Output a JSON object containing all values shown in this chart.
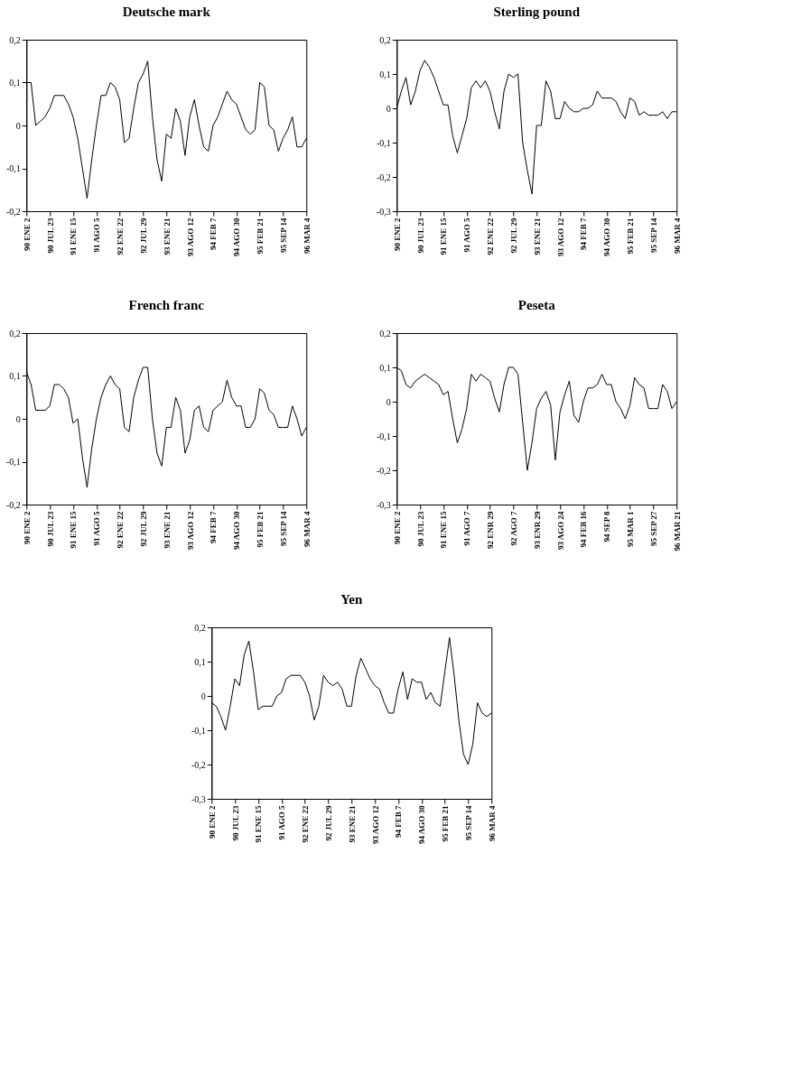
{
  "chart_data": [
    {
      "type": "line",
      "title": "Deutsche mark",
      "color": "#000000",
      "categories": [
        "90 ENE 2",
        null,
        null,
        null,
        null,
        "90 JUL 23",
        null,
        null,
        null,
        null,
        "91 ENE 15",
        null,
        null,
        null,
        null,
        "91 AGO 5",
        null,
        null,
        null,
        null,
        "92 ENE 22",
        null,
        null,
        null,
        null,
        "92 JUL 29",
        null,
        null,
        null,
        null,
        "93 ENE 21",
        null,
        null,
        null,
        null,
        "93 AGO 12",
        null,
        null,
        null,
        null,
        "94 FEB 7",
        null,
        null,
        null,
        null,
        "94 AGO 30",
        null,
        null,
        null,
        null,
        "95 FEB 21",
        null,
        null,
        null,
        null,
        "95 SEP 14",
        null,
        null,
        null,
        null,
        "96 MAR 4"
      ],
      "values": [
        0.1,
        0.1,
        0.0,
        0.01,
        0.02,
        0.04,
        0.07,
        0.07,
        0.07,
        0.05,
        0.02,
        -0.03,
        -0.1,
        -0.17,
        -0.08,
        0.0,
        0.07,
        0.07,
        0.1,
        0.09,
        0.06,
        -0.04,
        -0.03,
        0.04,
        0.1,
        0.12,
        0.15,
        0.02,
        -0.08,
        -0.13,
        -0.02,
        -0.03,
        0.04,
        0.01,
        -0.07,
        0.02,
        0.06,
        0.0,
        -0.05,
        -0.06,
        0.0,
        0.02,
        0.05,
        0.08,
        0.06,
        0.05,
        0.02,
        -0.01,
        -0.02,
        -0.01,
        0.1,
        0.09,
        0.0,
        -0.01,
        -0.06,
        -0.03,
        -0.01,
        0.02,
        -0.05,
        -0.05,
        -0.03
      ],
      "ylim": [
        -0.2,
        0.2
      ],
      "yticks": [
        {
          "value": -0.2,
          "label": "-0,2"
        },
        {
          "value": -0.1,
          "label": "-0,1"
        },
        0,
        {
          "value": 0.1,
          "label": "0,1"
        },
        {
          "value": 0.2,
          "label": "0,2"
        }
      ]
    },
    {
      "type": "line",
      "title": "Sterling pound",
      "color": "#000000",
      "categories": [
        "90 ENE 2",
        null,
        null,
        null,
        null,
        "90 JUL 23",
        null,
        null,
        null,
        null,
        "91 ENE 15",
        null,
        null,
        null,
        null,
        "91 AGO 5",
        null,
        null,
        null,
        null,
        "92 ENE 22",
        null,
        null,
        null,
        null,
        "92 JUL 29",
        null,
        null,
        null,
        null,
        "93 ENE 21",
        null,
        null,
        null,
        null,
        "93 AGO 12",
        null,
        null,
        null,
        null,
        "94 FEB 7",
        null,
        null,
        null,
        null,
        "94 AGO 30",
        null,
        null,
        null,
        null,
        "95 FEB 21",
        null,
        null,
        null,
        null,
        "95 SEP 14",
        null,
        null,
        null,
        null,
        "96 MAR 4"
      ],
      "values": [
        0.0,
        0.05,
        0.09,
        0.01,
        0.05,
        0.11,
        0.14,
        0.12,
        0.09,
        0.05,
        0.01,
        0.01,
        -0.08,
        -0.13,
        -0.08,
        -0.03,
        0.06,
        0.08,
        0.06,
        0.08,
        0.05,
        -0.01,
        -0.06,
        0.05,
        0.1,
        0.09,
        0.1,
        -0.1,
        -0.18,
        -0.25,
        -0.05,
        -0.05,
        0.08,
        0.05,
        -0.03,
        -0.03,
        0.02,
        0.0,
        -0.01,
        -0.01,
        0.0,
        0.0,
        0.01,
        0.05,
        0.03,
        0.03,
        0.03,
        0.02,
        -0.01,
        -0.03,
        0.03,
        0.02,
        -0.02,
        -0.01,
        -0.02,
        -0.02,
        -0.02,
        -0.01,
        -0.03,
        -0.01,
        -0.01
      ],
      "ylim": [
        -0.3,
        0.2
      ],
      "yticks": [
        {
          "value": -0.3,
          "label": "-0,3"
        },
        {
          "value": -0.2,
          "label": "-0,2"
        },
        {
          "value": -0.1,
          "label": "-0,1"
        },
        0,
        {
          "value": 0.1,
          "label": "0,1"
        },
        {
          "value": 0.2,
          "label": "0,2"
        }
      ]
    },
    {
      "type": "line",
      "title": "French franc",
      "color": "#000000",
      "categories": [
        "90 ENE 2",
        null,
        null,
        null,
        null,
        "90 JUL 23",
        null,
        null,
        null,
        null,
        "91 ENE 15",
        null,
        null,
        null,
        null,
        "91 AGO 5",
        null,
        null,
        null,
        null,
        "92 ENE 22",
        null,
        null,
        null,
        null,
        "92 JUL 29",
        null,
        null,
        null,
        null,
        "93 ENE 21",
        null,
        null,
        null,
        null,
        "93 AGO 12",
        null,
        null,
        null,
        null,
        "94 FEB 7",
        null,
        null,
        null,
        null,
        "94 AGO 30",
        null,
        null,
        null,
        null,
        "95 FEB 21",
        null,
        null,
        null,
        null,
        "95 SEP 14",
        null,
        null,
        null,
        null,
        "96 MAR 4"
      ],
      "values": [
        0.11,
        0.08,
        0.02,
        0.02,
        0.02,
        0.03,
        0.08,
        0.08,
        0.07,
        0.05,
        -0.01,
        0.0,
        -0.09,
        -0.16,
        -0.07,
        0.0,
        0.05,
        0.08,
        0.1,
        0.08,
        0.07,
        -0.02,
        -0.03,
        0.05,
        0.09,
        0.12,
        0.12,
        0.0,
        -0.08,
        -0.11,
        -0.02,
        -0.02,
        0.05,
        0.02,
        -0.08,
        -0.05,
        0.02,
        0.03,
        -0.02,
        -0.03,
        0.02,
        0.03,
        0.04,
        0.09,
        0.05,
        0.03,
        0.03,
        -0.02,
        -0.02,
        0.0,
        0.07,
        0.06,
        0.02,
        0.01,
        -0.02,
        -0.02,
        -0.02,
        0.03,
        0.0,
        -0.04,
        -0.02
      ],
      "ylim": [
        -0.2,
        0.2
      ],
      "yticks": [
        {
          "value": -0.2,
          "label": "-0,2"
        },
        {
          "value": -0.1,
          "label": "-0,1"
        },
        0,
        {
          "value": 0.1,
          "label": "0,1"
        },
        {
          "value": 0.2,
          "label": "0,2"
        }
      ]
    },
    {
      "type": "line",
      "title": "Peseta",
      "color": "#000000",
      "categories": [
        "90 ENE 2",
        null,
        null,
        null,
        null,
        "90 JUL 23",
        null,
        null,
        null,
        null,
        "91 ENE 15",
        null,
        null,
        null,
        null,
        "91 AGO 7",
        null,
        null,
        null,
        null,
        "92 ENR 29",
        null,
        null,
        null,
        null,
        "92 AGO 7",
        null,
        null,
        null,
        null,
        "93 ENR 29",
        null,
        null,
        null,
        null,
        "93 AGO 24",
        null,
        null,
        null,
        null,
        "94 FEB 16",
        null,
        null,
        null,
        null,
        "94 SEP 8",
        null,
        null,
        null,
        null,
        "95 MAR 1",
        null,
        null,
        null,
        null,
        "95 SEP 27",
        null,
        null,
        null,
        null,
        "96 MAR 21"
      ],
      "values": [
        0.1,
        0.09,
        0.05,
        0.04,
        0.06,
        0.07,
        0.08,
        0.07,
        0.06,
        0.05,
        0.02,
        0.03,
        -0.05,
        -0.12,
        -0.08,
        -0.02,
        0.08,
        0.06,
        0.08,
        0.07,
        0.06,
        0.01,
        -0.03,
        0.05,
        0.1,
        0.1,
        0.08,
        -0.06,
        -0.2,
        -0.12,
        -0.02,
        0.01,
        0.03,
        -0.01,
        -0.17,
        -0.03,
        0.02,
        0.06,
        -0.04,
        -0.06,
        0.0,
        0.04,
        0.04,
        0.05,
        0.08,
        0.05,
        0.05,
        0.0,
        -0.02,
        -0.05,
        -0.01,
        0.07,
        0.05,
        0.04,
        -0.02,
        -0.02,
        -0.02,
        0.05,
        0.03,
        -0.02,
        0.0
      ],
      "ylim": [
        -0.3,
        0.2
      ],
      "yticks": [
        {
          "value": -0.3,
          "label": "-0,3"
        },
        {
          "value": -0.2,
          "label": "-0,2"
        },
        {
          "value": -0.1,
          "label": "-0,1"
        },
        0,
        {
          "value": 0.1,
          "label": "0,1"
        },
        {
          "value": 0.2,
          "label": "0,2"
        }
      ]
    },
    {
      "type": "line",
      "title": "Yen",
      "color": "#000000",
      "categories": [
        "90 ENE 2",
        null,
        null,
        null,
        null,
        "90 JUL 23",
        null,
        null,
        null,
        null,
        "91 ENE 15",
        null,
        null,
        null,
        null,
        "91 AGO 5",
        null,
        null,
        null,
        null,
        "92 ENE 22",
        null,
        null,
        null,
        null,
        "92 JUL 29",
        null,
        null,
        null,
        null,
        "93 ENE 21",
        null,
        null,
        null,
        null,
        "93 AGO 12",
        null,
        null,
        null,
        null,
        "94 FEB 7",
        null,
        null,
        null,
        null,
        "94 AGO 30",
        null,
        null,
        null,
        null,
        "95 FEB 21",
        null,
        null,
        null,
        null,
        "95 SEP 14",
        null,
        null,
        null,
        null,
        "96 MAR 4"
      ],
      "values": [
        -0.02,
        -0.03,
        -0.06,
        -0.1,
        -0.03,
        0.05,
        0.03,
        0.12,
        0.16,
        0.07,
        -0.04,
        -0.03,
        -0.03,
        -0.03,
        0.0,
        0.01,
        0.05,
        0.06,
        0.06,
        0.06,
        0.04,
        0.0,
        -0.07,
        -0.03,
        0.06,
        0.04,
        0.03,
        0.04,
        0.02,
        -0.03,
        -0.03,
        0.06,
        0.11,
        0.08,
        0.05,
        0.03,
        0.02,
        -0.02,
        -0.05,
        -0.05,
        0.02,
        0.07,
        -0.01,
        0.05,
        0.04,
        0.04,
        -0.01,
        0.01,
        -0.02,
        -0.03,
        0.07,
        0.17,
        0.06,
        -0.07,
        -0.17,
        -0.2,
        -0.14,
        -0.02,
        -0.05,
        -0.06,
        -0.05
      ],
      "ylim": [
        -0.3,
        0.2
      ],
      "yticks": [
        {
          "value": -0.3,
          "label": "-0,3"
        },
        {
          "value": -0.2,
          "label": "-0,2"
        },
        {
          "value": -0.1,
          "label": "-0,1"
        },
        0,
        {
          "value": 0.1,
          "label": "0,1"
        },
        {
          "value": 0.2,
          "label": "0,2"
        }
      ]
    }
  ]
}
